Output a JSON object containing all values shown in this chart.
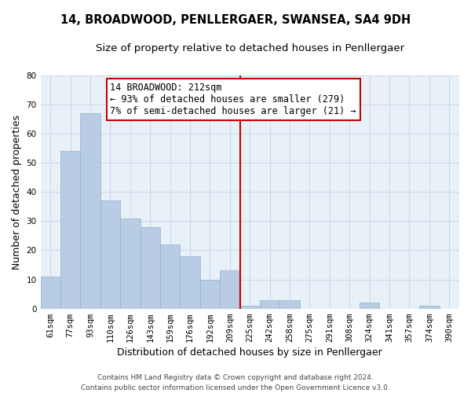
{
  "title": "14, BROADWOOD, PENLLERGAER, SWANSEA, SA4 9DH",
  "subtitle": "Size of property relative to detached houses in Penllergaer",
  "xlabel": "Distribution of detached houses by size in Penllergaer",
  "ylabel": "Number of detached properties",
  "categories": [
    "61sqm",
    "77sqm",
    "93sqm",
    "110sqm",
    "126sqm",
    "143sqm",
    "159sqm",
    "176sqm",
    "192sqm",
    "209sqm",
    "225sqm",
    "242sqm",
    "258sqm",
    "275sqm",
    "291sqm",
    "308sqm",
    "324sqm",
    "341sqm",
    "357sqm",
    "374sqm",
    "390sqm"
  ],
  "values": [
    11,
    54,
    67,
    37,
    31,
    28,
    22,
    18,
    10,
    13,
    1,
    3,
    3,
    0,
    0,
    0,
    2,
    0,
    0,
    1,
    0
  ],
  "bar_color": "#b8cce4",
  "bar_edge_color": "#8fb4d0",
  "vline_x_idx": 9.5,
  "vline_color": "#cc0000",
  "annotation_line1": "14 BROADWOOD: 212sqm",
  "annotation_line2": "← 93% of detached houses are smaller (279)",
  "annotation_line3": "7% of semi-detached houses are larger (21) →",
  "annotation_box_color": "#cc0000",
  "ylim": [
    0,
    80
  ],
  "yticks": [
    0,
    10,
    20,
    30,
    40,
    50,
    60,
    70,
    80
  ],
  "grid_color": "#ccd8e8",
  "background_color": "#e8f0f8",
  "footer": "Contains HM Land Registry data © Crown copyright and database right 2024.\nContains public sector information licensed under the Open Government Licence v3.0.",
  "title_fontsize": 10.5,
  "subtitle_fontsize": 9.5,
  "xlabel_fontsize": 9,
  "ylabel_fontsize": 9,
  "tick_fontsize": 7.5,
  "annotation_fontsize": 8.5,
  "footer_fontsize": 6.5
}
